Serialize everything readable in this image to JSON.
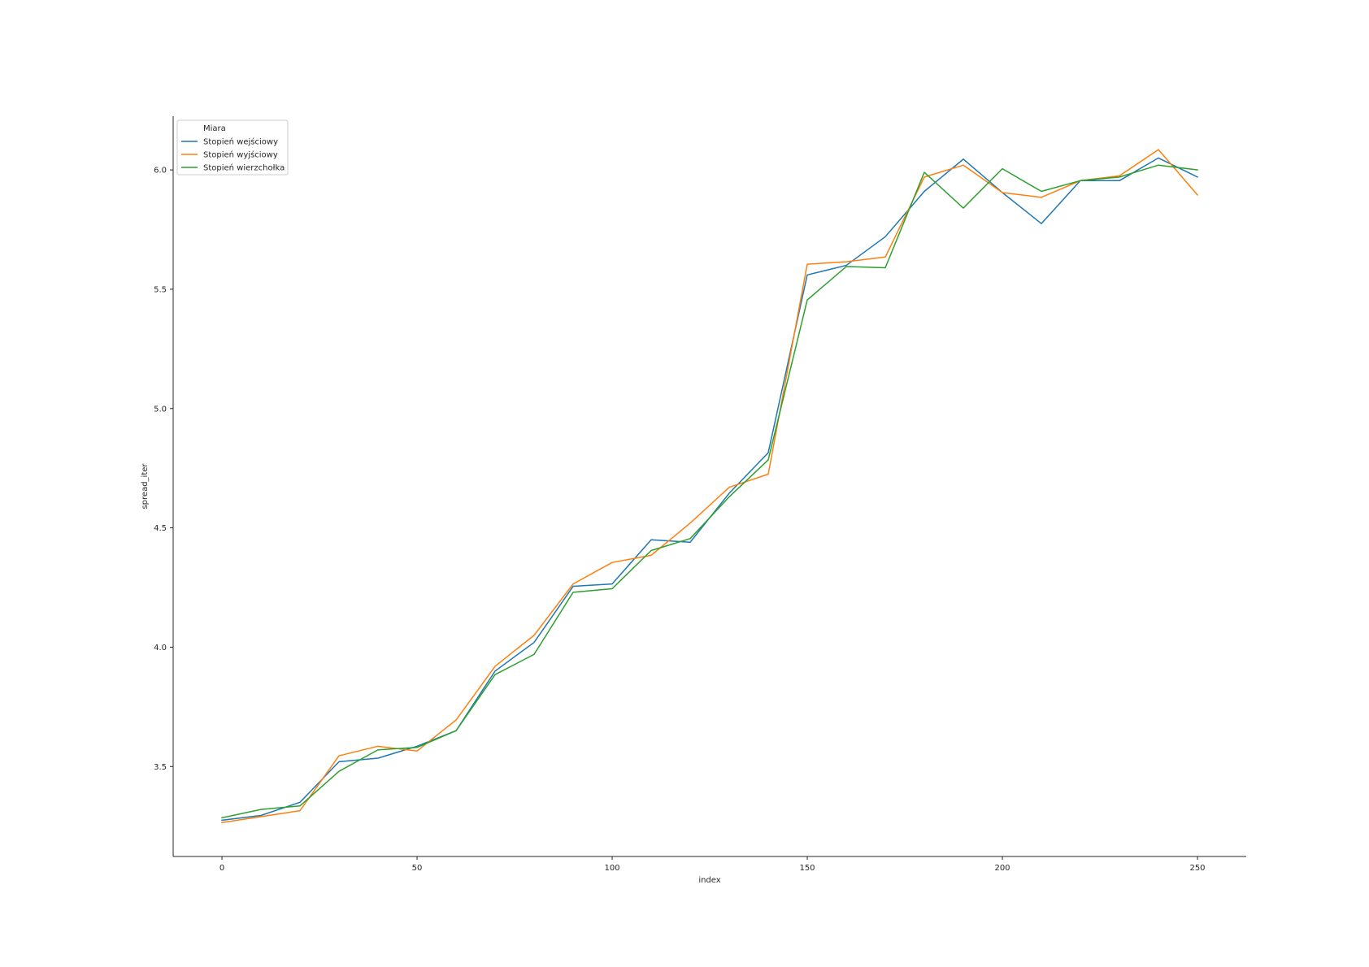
{
  "chart_data": {
    "type": "line",
    "title": "",
    "xlabel": "index",
    "ylabel": "spread_iter",
    "xlim": [
      -12.5,
      262.5
    ],
    "ylim": [
      3.123,
      6.225
    ],
    "x_ticks": [
      0,
      50,
      100,
      150,
      200,
      250
    ],
    "y_ticks": [
      3.5,
      4.0,
      4.5,
      5.0,
      5.5,
      6.0
    ],
    "x_tick_labels": [
      "0",
      "50",
      "100",
      "150",
      "200",
      "250"
    ],
    "y_tick_labels": [
      "3.5",
      "4.0",
      "4.5",
      "5.0",
      "5.5",
      "6.0"
    ],
    "grid": false,
    "legend": {
      "title": "Miara",
      "position": "top-left"
    },
    "x": [
      0,
      10,
      20,
      30,
      40,
      50,
      60,
      70,
      80,
      90,
      100,
      110,
      120,
      130,
      140,
      150,
      160,
      170,
      180,
      190,
      200,
      210,
      220,
      230,
      240,
      250
    ],
    "series": [
      {
        "name": "Stopień wejściowy",
        "color": "#1f77b4",
        "values": [
          3.275,
          3.295,
          3.35,
          3.52,
          3.535,
          3.585,
          3.65,
          3.9,
          4.02,
          4.255,
          4.265,
          4.45,
          4.44,
          4.645,
          4.815,
          5.56,
          5.6,
          5.72,
          5.91,
          6.045,
          5.905,
          5.775,
          5.955,
          5.955,
          6.05,
          5.97
        ]
      },
      {
        "name": "Stopień wyjściowy",
        "color": "#ff7f0e",
        "values": [
          3.265,
          3.29,
          3.315,
          3.545,
          3.585,
          3.565,
          3.695,
          3.92,
          4.05,
          4.265,
          4.355,
          4.385,
          4.52,
          4.67,
          4.725,
          5.605,
          5.615,
          5.635,
          5.97,
          6.02,
          5.905,
          5.885,
          5.955,
          5.975,
          6.085,
          5.895
        ]
      },
      {
        "name": "Stopień wierzchołka",
        "color": "#2ca02c",
        "values": [
          3.285,
          3.32,
          3.335,
          3.48,
          3.57,
          3.58,
          3.65,
          3.885,
          3.97,
          4.23,
          4.245,
          4.405,
          4.455,
          4.63,
          4.785,
          5.455,
          5.595,
          5.59,
          5.99,
          5.84,
          6.005,
          5.91,
          5.955,
          5.97,
          6.02,
          6.0
        ]
      }
    ]
  }
}
